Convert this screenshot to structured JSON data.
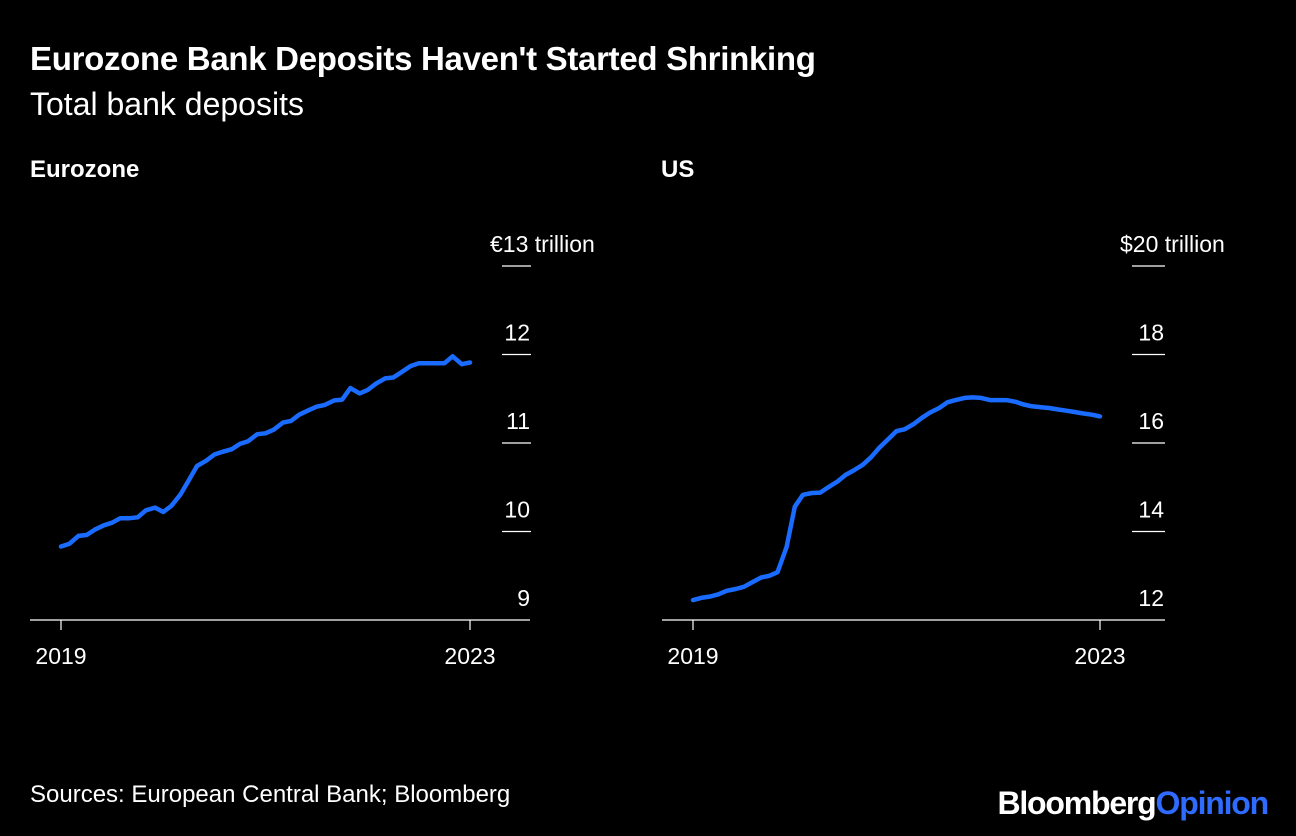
{
  "header": {
    "title": "Eurozone Bank Deposits Haven't Started Shrinking",
    "subtitle": "Total bank deposits"
  },
  "footer": {
    "source": "Sources: European Central Bank; Bloomberg",
    "logo_brand": "Bloomberg",
    "logo_opinion": "Opinion"
  },
  "colors": {
    "background": "#000000",
    "text": "#ffffff",
    "line": "#1a6bff",
    "axis": "#ffffff",
    "logo_accent": "#2f6bff"
  },
  "chart_data": [
    {
      "type": "line",
      "title": "Eurozone",
      "ylim": [
        9,
        13
      ],
      "xlim": [
        2019.0,
        2023.0
      ],
      "y_ticks": [
        {
          "value": 13,
          "label": "€13 trillion"
        },
        {
          "value": 12,
          "label": "12"
        },
        {
          "value": 11,
          "label": "11"
        },
        {
          "value": 10,
          "label": "10"
        },
        {
          "value": 9,
          "label": "9"
        }
      ],
      "x_ticks": [
        {
          "value": 2019.0,
          "label": "2019"
        },
        {
          "value": 2023.0,
          "label": "2023"
        }
      ],
      "grid": false,
      "series": [
        {
          "x": [
            2019.0,
            2019.08,
            2019.17,
            2019.25,
            2019.33,
            2019.42,
            2019.5,
            2019.58,
            2019.67,
            2019.75,
            2019.83,
            2019.92,
            2020.0,
            2020.08,
            2020.17,
            2020.25,
            2020.33,
            2020.42,
            2020.5,
            2020.58,
            2020.67,
            2020.75,
            2020.83,
            2020.92,
            2021.0,
            2021.08,
            2021.17,
            2021.25,
            2021.33,
            2021.42,
            2021.5,
            2021.58,
            2021.67,
            2021.75,
            2021.83,
            2021.92,
            2022.0,
            2022.08,
            2022.17,
            2022.25,
            2022.33,
            2022.42,
            2022.5,
            2022.58,
            2022.67,
            2022.75,
            2022.83,
            2022.92,
            2023.0
          ],
          "values": [
            9.83,
            9.86,
            9.95,
            9.96,
            10.02,
            10.07,
            10.1,
            10.15,
            10.15,
            10.16,
            10.24,
            10.27,
            10.22,
            10.29,
            10.42,
            10.58,
            10.74,
            10.8,
            10.87,
            10.9,
            10.93,
            10.99,
            11.02,
            11.1,
            11.11,
            11.15,
            11.23,
            11.25,
            11.32,
            11.37,
            11.41,
            11.43,
            11.48,
            11.49,
            11.62,
            11.56,
            11.6,
            11.67,
            11.73,
            11.74,
            11.8,
            11.87,
            11.9,
            11.9,
            11.9,
            11.9,
            11.98,
            11.89,
            11.91
          ]
        }
      ]
    },
    {
      "type": "line",
      "title": "US",
      "ylim": [
        12,
        20
      ],
      "xlim": [
        2019.0,
        2023.0
      ],
      "y_ticks": [
        {
          "value": 20,
          "label": "$20 trillion"
        },
        {
          "value": 18,
          "label": "18"
        },
        {
          "value": 16,
          "label": "16"
        },
        {
          "value": 14,
          "label": "14"
        },
        {
          "value": 12,
          "label": "12"
        }
      ],
      "x_ticks": [
        {
          "value": 2019.0,
          "label": "2019"
        },
        {
          "value": 2023.0,
          "label": "2023"
        }
      ],
      "grid": false,
      "series": [
        {
          "x": [
            2019.0,
            2019.08,
            2019.17,
            2019.25,
            2019.33,
            2019.42,
            2019.5,
            2019.58,
            2019.67,
            2019.75,
            2019.83,
            2019.92,
            2020.0,
            2020.08,
            2020.17,
            2020.25,
            2020.33,
            2020.42,
            2020.5,
            2020.58,
            2020.67,
            2020.75,
            2020.83,
            2020.92,
            2021.0,
            2021.08,
            2021.17,
            2021.25,
            2021.33,
            2021.42,
            2021.5,
            2021.58,
            2021.67,
            2021.75,
            2021.83,
            2021.92,
            2022.0,
            2022.08,
            2022.17,
            2022.25,
            2022.33,
            2022.42,
            2022.5,
            2022.58,
            2022.67,
            2022.75,
            2022.83,
            2022.92,
            2023.0
          ],
          "values": [
            12.45,
            12.5,
            12.53,
            12.58,
            12.66,
            12.7,
            12.75,
            12.85,
            12.96,
            13.0,
            13.08,
            13.65,
            14.56,
            14.83,
            14.87,
            14.88,
            15.0,
            15.13,
            15.28,
            15.38,
            15.51,
            15.68,
            15.89,
            16.09,
            16.27,
            16.31,
            16.43,
            16.57,
            16.69,
            16.79,
            16.92,
            16.97,
            17.02,
            17.03,
            17.02,
            16.97,
            16.97,
            16.97,
            16.93,
            16.87,
            16.83,
            16.81,
            16.79,
            16.76,
            16.73,
            16.7,
            16.67,
            16.64,
            16.6
          ]
        }
      ]
    }
  ]
}
